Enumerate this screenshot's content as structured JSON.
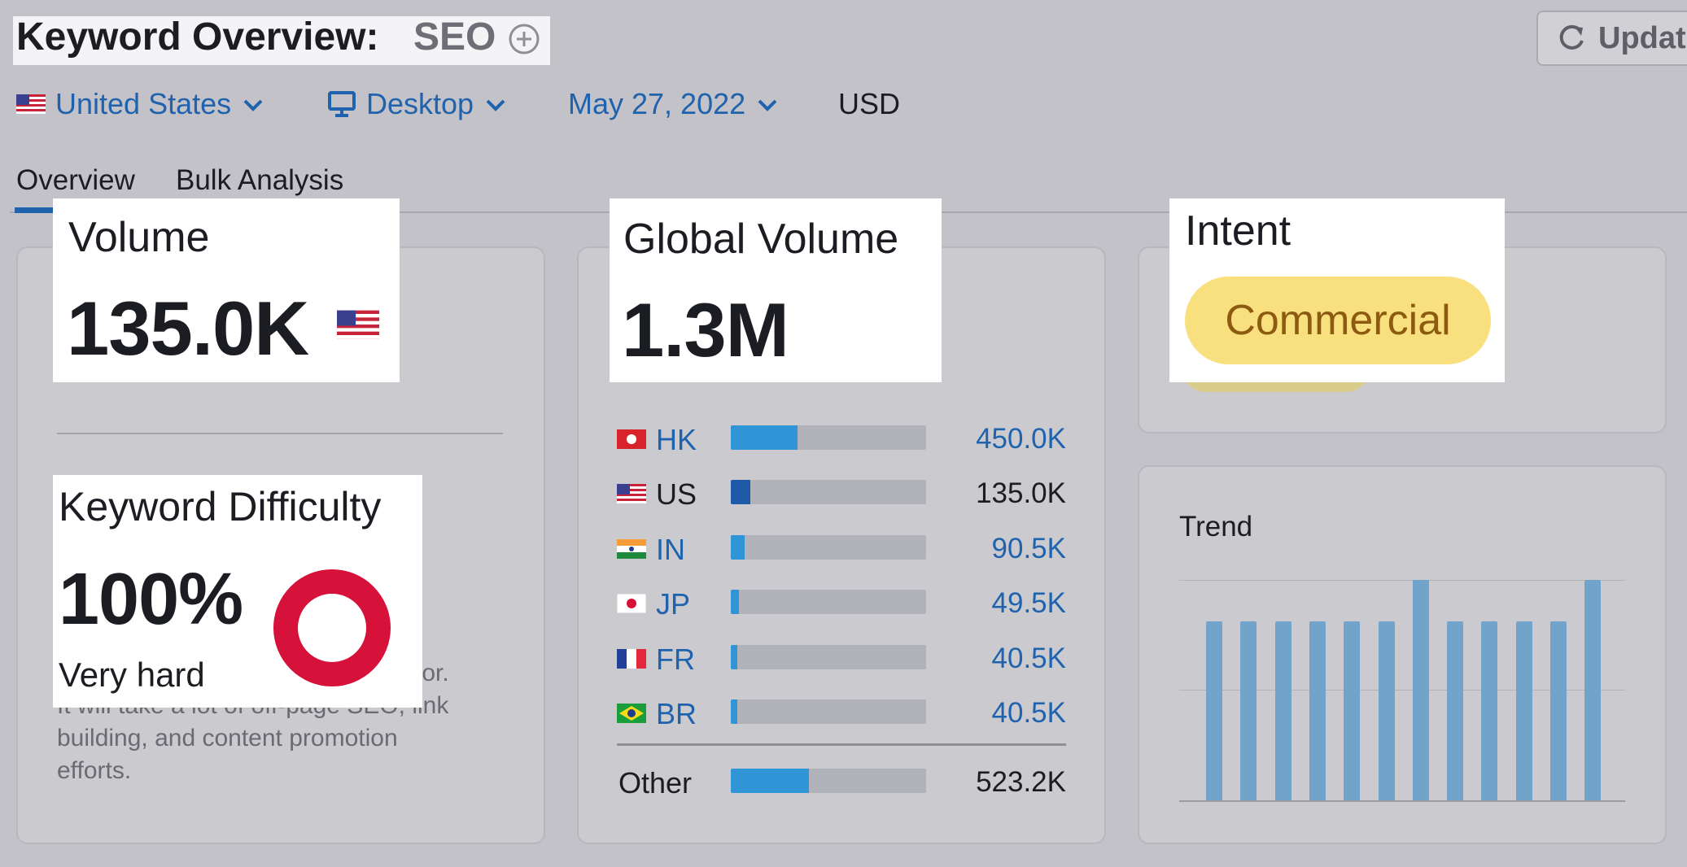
{
  "header": {
    "title": "Keyword Overview:",
    "keyword": "SEO",
    "update_label": "Updat"
  },
  "filters": {
    "country": "United States",
    "device": "Desktop",
    "date": "May 27, 2022",
    "currency": "USD"
  },
  "tabs": [
    "Overview",
    "Bulk Analysis"
  ],
  "volume": {
    "label": "Volume",
    "value": "135.0K"
  },
  "global_volume": {
    "label": "Global Volume",
    "value": "1.3M",
    "countries": [
      {
        "code": "HK",
        "value": "450.0K",
        "share": 0.34
      },
      {
        "code": "US",
        "value": "135.0K",
        "share": 0.1
      },
      {
        "code": "IN",
        "value": "90.5K",
        "share": 0.07
      },
      {
        "code": "JP",
        "value": "49.5K",
        "share": 0.04
      },
      {
        "code": "FR",
        "value": "40.5K",
        "share": 0.03
      },
      {
        "code": "BR",
        "value": "40.5K",
        "share": 0.03
      }
    ],
    "other": {
      "label": "Other",
      "value": "523.2K",
      "share": 0.4
    }
  },
  "keyword_difficulty": {
    "label": "Keyword Difficulty",
    "value": "100%",
    "level": "Very hard",
    "percent": 100,
    "ring_color": "#d6113a",
    "description_partial_1": "ce for.",
    "description_partial_2": "It will take a lot of off-page SEO, link",
    "description_2": "building, and content promotion",
    "description_3": "efforts."
  },
  "intent": {
    "label": "Intent",
    "value": "Commercial"
  },
  "trend": {
    "label": "Trend",
    "values": [
      0.81,
      0.81,
      0.81,
      0.81,
      0.81,
      0.81,
      1.0,
      0.81,
      0.81,
      0.81,
      0.81,
      1.0
    ]
  },
  "colors": {
    "accent": "#1f62ad",
    "bar_light": "#2f95d6",
    "bar_dark": "#1f5aa8",
    "intent_pill": "#f8e07e",
    "trend_bar": "#71a3cb"
  }
}
